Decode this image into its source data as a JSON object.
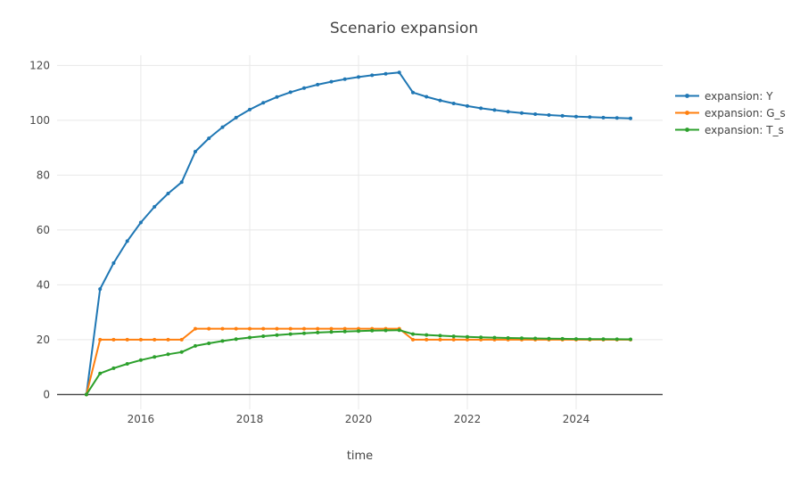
{
  "chart_data": {
    "type": "line",
    "mode": "lines+markers",
    "title": "Scenario expansion",
    "xlabel": "time",
    "ylabel": "",
    "x_start": 2015,
    "x_step": 0.25,
    "xticks": [
      2016,
      2018,
      2020,
      2022,
      2024
    ],
    "yticks": [
      0,
      20,
      40,
      60,
      80,
      100,
      120
    ],
    "xlim": [
      2014.46,
      2025.59
    ],
    "ylim": [
      -5.4,
      123.7
    ],
    "grid": true,
    "legend_position": "right",
    "series": [
      {
        "name": "expansion: Y",
        "color": "#1f77b4",
        "values": [
          0,
          38.46,
          47.93,
          55.94,
          62.72,
          68.45,
          73.31,
          77.41,
          88.58,
          93.41,
          97.5,
          100.97,
          103.89,
          106.37,
          108.47,
          110.24,
          111.74,
          113.01,
          114.09,
          115.0,
          115.77,
          116.42,
          116.97,
          117.44,
          110.14,
          108.58,
          107.26,
          106.14,
          105.2,
          104.4,
          103.72,
          103.15,
          102.66,
          102.25,
          101.91,
          101.61,
          101.37,
          101.16,
          100.98,
          100.83,
          100.7
        ]
      },
      {
        "name": "expansion: G_s",
        "color": "#ff7f0e",
        "values": [
          0,
          20,
          20,
          20,
          20,
          20,
          20,
          20,
          24,
          24,
          24,
          24,
          24,
          24,
          24,
          24,
          24,
          24,
          24,
          24,
          24,
          24,
          24,
          24,
          20,
          20,
          20,
          20,
          20,
          20,
          20,
          20,
          20,
          20,
          20,
          20,
          20,
          20,
          20,
          20,
          20
        ]
      },
      {
        "name": "expansion: T_s",
        "color": "#2ca02c",
        "values": [
          0,
          7.69,
          9.59,
          11.19,
          12.54,
          13.69,
          14.66,
          15.48,
          17.72,
          18.68,
          19.5,
          20.19,
          20.78,
          21.27,
          21.69,
          22.05,
          22.35,
          22.6,
          22.82,
          23.0,
          23.15,
          23.28,
          23.39,
          23.49,
          22.03,
          21.72,
          21.45,
          21.23,
          21.04,
          20.88,
          20.74,
          20.63,
          20.53,
          20.45,
          20.38,
          20.32,
          20.27,
          20.23,
          20.2,
          20.17,
          20.14
        ]
      }
    ],
    "style": {
      "grid_color": "#e8e8e8",
      "zeroline_color": "#444444",
      "text_color": "#4a4a4a",
      "background": "#ffffff"
    }
  }
}
